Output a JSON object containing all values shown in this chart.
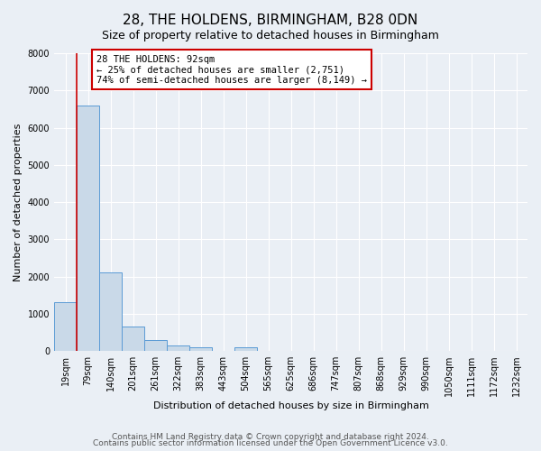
{
  "title": "28, THE HOLDENS, BIRMINGHAM, B28 0DN",
  "subtitle": "Size of property relative to detached houses in Birmingham",
  "xlabel": "Distribution of detached houses by size in Birmingham",
  "ylabel": "Number of detached properties",
  "bins": [
    "19sqm",
    "79sqm",
    "140sqm",
    "201sqm",
    "261sqm",
    "322sqm",
    "383sqm",
    "443sqm",
    "504sqm",
    "565sqm",
    "625sqm",
    "686sqm",
    "747sqm",
    "807sqm",
    "868sqm",
    "929sqm",
    "990sqm",
    "1050sqm",
    "1111sqm",
    "1172sqm",
    "1232sqm"
  ],
  "values": [
    1300,
    6600,
    2100,
    650,
    300,
    150,
    100,
    0,
    100,
    0,
    0,
    0,
    0,
    0,
    0,
    0,
    0,
    0,
    0,
    0,
    0
  ],
  "bar_color": "#c9d9e8",
  "bar_edge_color": "#5b9bd5",
  "property_line_color": "#cc0000",
  "annotation_box_text": "28 THE HOLDENS: 92sqm\n← 25% of detached houses are smaller (2,751)\n74% of semi-detached houses are larger (8,149) →",
  "annotation_box_color": "#cc0000",
  "ylim": [
    0,
    8000
  ],
  "yticks": [
    0,
    1000,
    2000,
    3000,
    4000,
    5000,
    6000,
    7000,
    8000
  ],
  "footer_line1": "Contains HM Land Registry data © Crown copyright and database right 2024.",
  "footer_line2": "Contains public sector information licensed under the Open Government Licence v3.0.",
  "bg_color": "#eaeff5",
  "plot_bg_color": "#eaeff5",
  "grid_color": "#ffffff",
  "title_fontsize": 11,
  "subtitle_fontsize": 9,
  "axis_label_fontsize": 8,
  "tick_fontsize": 7,
  "footer_fontsize": 6.5
}
